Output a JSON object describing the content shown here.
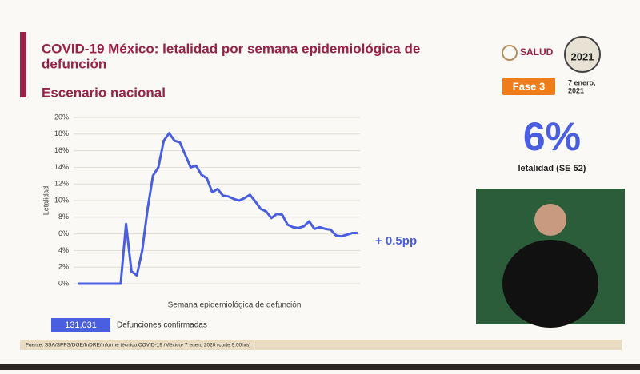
{
  "header": {
    "title_line1": "COVID-19 México: letalidad por semana epidemiológica de",
    "title_line2": "defunción",
    "subtitle": "Escenario nacional",
    "logo": "SALUD",
    "year": "2021",
    "phase": "Fase 3",
    "date_line1": "7 enero,",
    "date_line2": "2021"
  },
  "stat": {
    "value": "6%",
    "label": "letalidad (SE 52)"
  },
  "counter": {
    "value": "131,031",
    "label": "Defunciones confirmadas"
  },
  "footer": {
    "source": "Fuente: SSA/SPPS/DGE/InDRE/Informe técnico.COVID-19 /México- 7 enero 2020 (corte 9:00hrs)"
  },
  "chart_data": {
    "type": "line",
    "ylabel": "Letalidad",
    "xlabel": "Semana epidemiológica de defunción",
    "annotation": "+ 0.5pp",
    "color": "#4a5fe0",
    "grid": true,
    "values": [
      0,
      0,
      0,
      0,
      0,
      0,
      0,
      0,
      0,
      7.2,
      1.5,
      1,
      4,
      9,
      13,
      14,
      17.2,
      18.1,
      17.2,
      17,
      15.5,
      14,
      14.2,
      13.1,
      12.7,
      11,
      11.4,
      10.6,
      10.5,
      10.2,
      10,
      10.3,
      10.7,
      9.9,
      9,
      8.7,
      7.9,
      8.4,
      8.3,
      7.1,
      6.8,
      6.7,
      6.9,
      7.5,
      6.6,
      6.8,
      6.6,
      6.5,
      5.8,
      5.7,
      5.9,
      6.1,
      6.1
    ],
    "ylim": [
      0,
      20
    ],
    "yticks": [
      {
        "value": 0,
        "label": "0%"
      },
      {
        "value": 2,
        "label": "2%"
      },
      {
        "value": 4,
        "label": "4%"
      },
      {
        "value": 6,
        "label": "6%"
      },
      {
        "value": 8,
        "label": "8%"
      },
      {
        "value": 10,
        "label": "10%"
      },
      {
        "value": 12,
        "label": "12%"
      },
      {
        "value": 14,
        "label": "14%"
      },
      {
        "value": 16,
        "label": "16%"
      },
      {
        "value": 18,
        "label": "18%"
      },
      {
        "value": 20,
        "label": "20%"
      }
    ]
  }
}
